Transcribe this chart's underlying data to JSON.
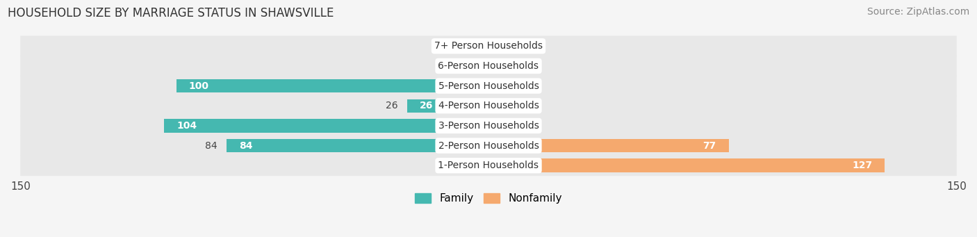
{
  "title": "HOUSEHOLD SIZE BY MARRIAGE STATUS IN SHAWSVILLE",
  "source": "Source: ZipAtlas.com",
  "categories": [
    "7+ Person Households",
    "6-Person Households",
    "5-Person Households",
    "4-Person Households",
    "3-Person Households",
    "2-Person Households",
    "1-Person Households"
  ],
  "family_values": [
    0,
    0,
    100,
    26,
    104,
    84,
    0
  ],
  "nonfamily_values": [
    0,
    0,
    0,
    0,
    0,
    77,
    127
  ],
  "family_color": "#45b8b0",
  "nonfamily_color": "#f5a96e",
  "xlim": 150,
  "row_bg_color": "#e8e8e8",
  "fig_bg_color": "#f5f5f5",
  "title_fontsize": 12,
  "tick_fontsize": 11,
  "bar_label_fontsize": 10,
  "category_fontsize": 10,
  "source_fontsize": 10,
  "bar_height": 0.68,
  "stub_size": 8
}
